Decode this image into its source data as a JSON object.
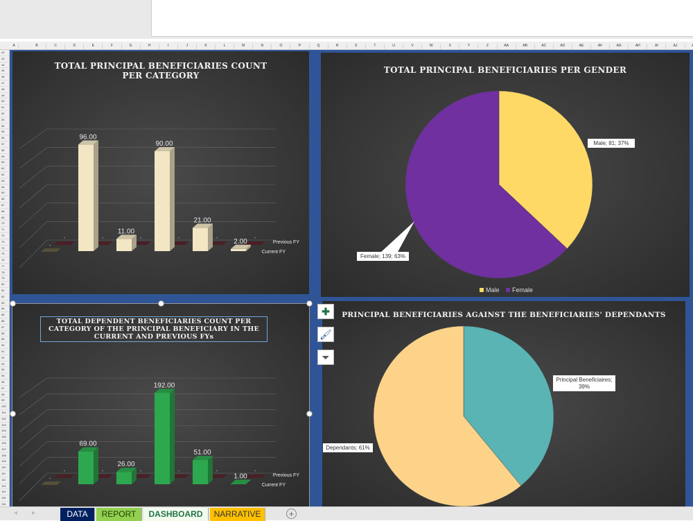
{
  "columns": [
    "A",
    "B",
    "C",
    "D",
    "E",
    "F",
    "G",
    "H",
    "I",
    "J",
    "K",
    "L",
    "M",
    "N",
    "O",
    "P",
    "Q",
    "R",
    "S",
    "T",
    "U",
    "V",
    "W",
    "X",
    "Y",
    "Z",
    "AA",
    "AB",
    "AC",
    "AD",
    "AE",
    "AF",
    "AG",
    "AH",
    "AI",
    "AJ",
    "AK"
  ],
  "row_start": 42,
  "row_end": 116,
  "sheet_tabs": [
    {
      "label": "DATA",
      "bg": "#002060",
      "fg": "#ffffff"
    },
    {
      "label": "REPORT",
      "bg": "#92d050",
      "fg": "#1f3b00"
    },
    {
      "label": "DASHBOARD",
      "bg": "#f3fbef",
      "fg": "#217346",
      "active": true
    },
    {
      "label": "NARRATIVE",
      "bg": "#ffc000",
      "fg": "#333333"
    }
  ],
  "add_sheet": "+",
  "chart_tools": [
    "plus-icon",
    "brush-icon",
    "filter-icon"
  ],
  "chart_data": [
    {
      "type": "bar",
      "title": "TOTAL PRINCIPAL BENEFICIARIES COUNT PER CATEGORY",
      "color": "#f2e6c4",
      "series": [
        {
          "name": "Current FY",
          "values": [
            0,
            96,
            11,
            90,
            21,
            2
          ],
          "labels": [
            "-",
            "96.00",
            "11.00",
            "90.00",
            "21.00",
            "2.00"
          ]
        },
        {
          "name": "Previous FY",
          "values": [
            0,
            0,
            0,
            0,
            0,
            0
          ],
          "labels": [
            "-",
            "-",
            "-",
            "-",
            "-",
            "-"
          ]
        }
      ],
      "ylim": [
        0,
        100
      ],
      "grid": true
    },
    {
      "type": "pie",
      "title": "TOTAL PRINCIPAL BENEFICIARIES PER GENDER",
      "slices": [
        {
          "name": "Male",
          "value": 81,
          "pct": 37,
          "label": "Male; 81; 37%",
          "color": "#ffd966"
        },
        {
          "name": "Female",
          "value": 139,
          "pct": 63,
          "label": "Female; 139; 63%",
          "color": "#7030a0"
        }
      ],
      "legend": "bottom"
    },
    {
      "type": "bar",
      "title": "TOTAL  DEPENDENT BENEFICIARIES COUNT PER CATEGORY OF THE PRINCIPAL BENEFICIARY IN THE CURRENT AND PREVIOUS FYs",
      "color": "#2ea84f",
      "series": [
        {
          "name": "Current FY",
          "values": [
            0,
            69,
            26,
            192,
            51,
            1
          ],
          "labels": [
            "-",
            "69.00",
            "26.00",
            "192.00",
            "51.00",
            "1.00"
          ]
        },
        {
          "name": "Previous FY",
          "values": [
            0,
            0,
            0,
            0,
            0,
            0
          ],
          "labels": [
            "-",
            "-",
            "-",
            "-",
            "-",
            "-"
          ]
        }
      ],
      "ylim": [
        0,
        200
      ],
      "grid": true
    },
    {
      "type": "pie",
      "title": "PRINCIPAL BENEFICIARIES AGAINST THE BENEFICIARIES' DEPENDANTS",
      "slices": [
        {
          "name": "Principal Beneficiaires",
          "pct": 39,
          "label": "Principal Beneficiaires; 39%",
          "color": "#5ab4b4"
        },
        {
          "name": "Dependants",
          "pct": 61,
          "label": "Dependants; 61%",
          "color": "#fdd38a"
        }
      ]
    }
  ]
}
